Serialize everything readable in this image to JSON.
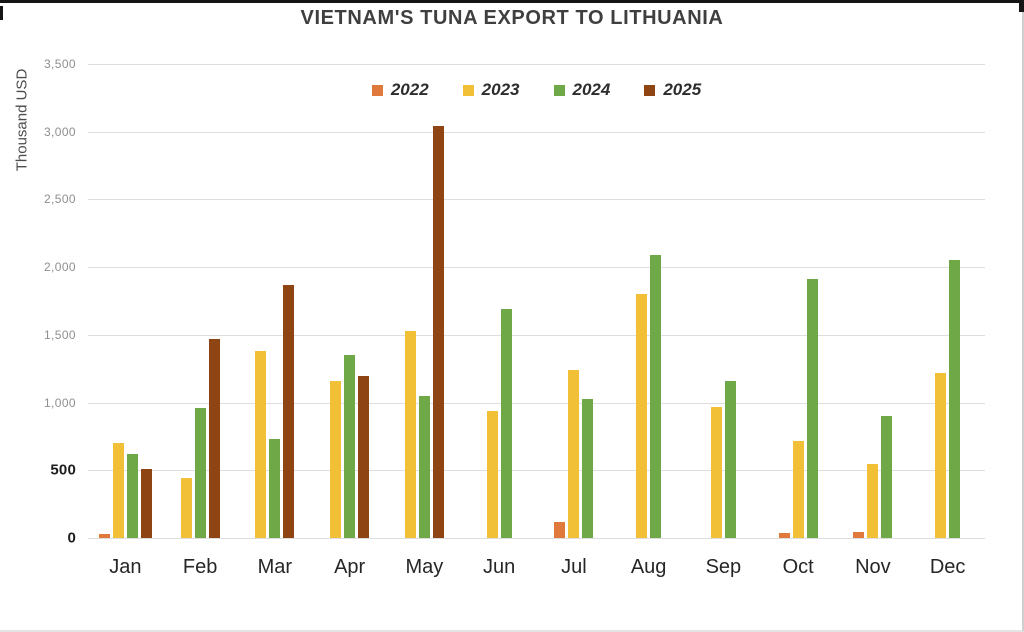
{
  "chart_data": {
    "type": "bar",
    "title": "VIETNAM'S TUNA EXPORT TO LITHUANIA",
    "xlabel": "",
    "ylabel": "Thousand USD",
    "categories": [
      "Jan",
      "Feb",
      "Mar",
      "Apr",
      "May",
      "Jun",
      "Jul",
      "Aug",
      "Sep",
      "Oct",
      "Nov",
      "Dec"
    ],
    "series": [
      {
        "name": "2022",
        "color": "#E0793C",
        "values": [
          30,
          null,
          null,
          null,
          null,
          null,
          120,
          null,
          null,
          40,
          45,
          null
        ]
      },
      {
        "name": "2023",
        "color": "#F2C037",
        "values": [
          700,
          440,
          1380,
          1160,
          1530,
          940,
          1240,
          1800,
          970,
          720,
          550,
          1220
        ]
      },
      {
        "name": "2024",
        "color": "#6FA847",
        "values": [
          620,
          960,
          730,
          1350,
          1050,
          1690,
          1030,
          2090,
          1160,
          1910,
          900,
          2050
        ]
      },
      {
        "name": "2025",
        "color": "#8E4513",
        "values": [
          510,
          1470,
          1870,
          1200,
          3040,
          null,
          null,
          null,
          null,
          null,
          null,
          null
        ]
      }
    ],
    "ylim": [
      0,
      3500
    ],
    "y_ticks": [
      {
        "label": "3,500",
        "value": 3500,
        "emphasis": false
      },
      {
        "label": "3,000",
        "value": 3000,
        "emphasis": false
      },
      {
        "label": "2,500",
        "value": 2500,
        "emphasis": false
      },
      {
        "label": "2,000",
        "value": 2000,
        "emphasis": false
      },
      {
        "label": "1,500",
        "value": 1500,
        "emphasis": false
      },
      {
        "label": "1,000",
        "value": 1000,
        "emphasis": false
      },
      {
        "label": "500",
        "value": 500,
        "emphasis": true
      },
      {
        "label": "0",
        "value": 0,
        "emphasis": true
      }
    ],
    "grid": true,
    "legend_position": "top-center"
  }
}
